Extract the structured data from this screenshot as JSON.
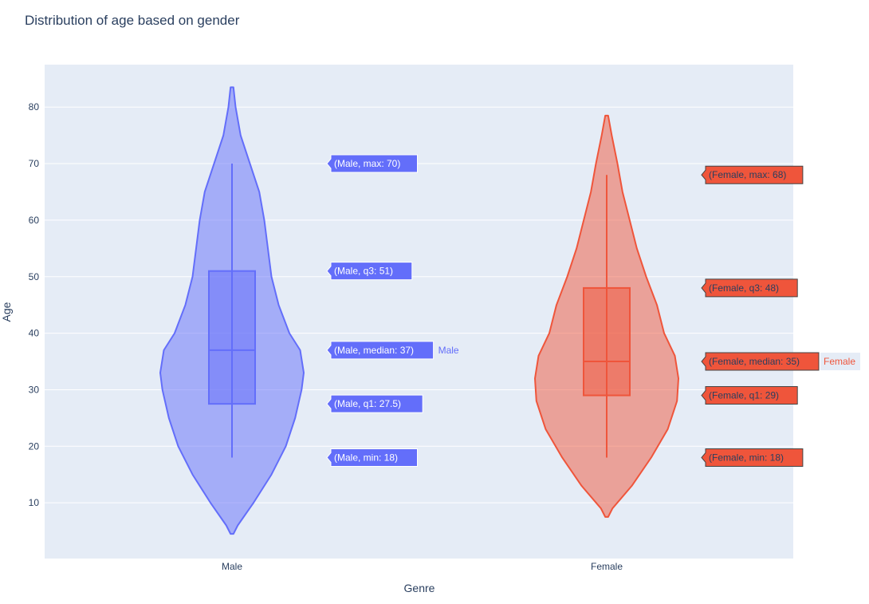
{
  "chart_data": {
    "type": "violin",
    "title": "Distribution of age based on gender",
    "xlabel": "Genre",
    "ylabel": "Age",
    "ylim": [
      0,
      89
    ],
    "yticks": [
      10,
      20,
      30,
      40,
      50,
      60,
      70,
      80
    ],
    "categories": [
      "Male",
      "Female"
    ],
    "grid": true,
    "series": [
      {
        "name": "Male",
        "color": "#636efa",
        "stats": {
          "min": 18,
          "q1": 27.5,
          "median": 37,
          "q3": 51,
          "max": 70
        },
        "kde_extent": [
          4.5,
          83.5
        ],
        "hover_labels": [
          "(Male, max: 70)",
          "(Male, q3: 51)",
          "(Male, median: 37)",
          "(Male, q1: 27.5)",
          "(Male, min: 18)"
        ],
        "label": "Male"
      },
      {
        "name": "Female",
        "color": "#ef553b",
        "stats": {
          "min": 18,
          "q1": 29,
          "median": 35,
          "q3": 48,
          "max": 68
        },
        "kde_extent": [
          7.5,
          78.5
        ],
        "hover_labels": [
          "(Female, max: 68)",
          "(Female, q3: 48)",
          "(Female, median: 35)",
          "(Female, q1: 29)",
          "(Female, min: 18)"
        ],
        "label": "Female"
      }
    ]
  }
}
